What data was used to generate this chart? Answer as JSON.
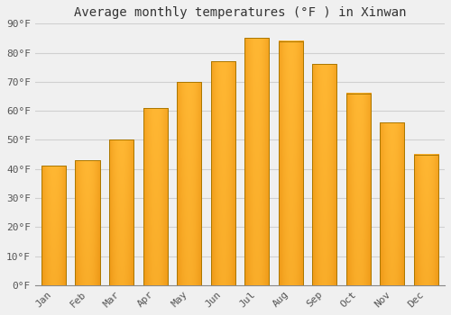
{
  "title": "Average monthly temperatures (°F ) in Xinwan",
  "months": [
    "Jan",
    "Feb",
    "Mar",
    "Apr",
    "May",
    "Jun",
    "Jul",
    "Aug",
    "Sep",
    "Oct",
    "Nov",
    "Dec"
  ],
  "values": [
    41,
    43,
    50,
    61,
    70,
    77,
    85,
    84,
    76,
    66,
    56,
    45
  ],
  "bar_color_light": "#FFB733",
  "bar_color_dark": "#E08000",
  "bar_edge_color": "#AA7700",
  "ylim": [
    0,
    90
  ],
  "yticks": [
    0,
    10,
    20,
    30,
    40,
    50,
    60,
    70,
    80,
    90
  ],
  "background_color": "#f0f0f0",
  "grid_color": "#d0d0d0",
  "title_fontsize": 10,
  "tick_fontsize": 8,
  "font_family": "monospace"
}
